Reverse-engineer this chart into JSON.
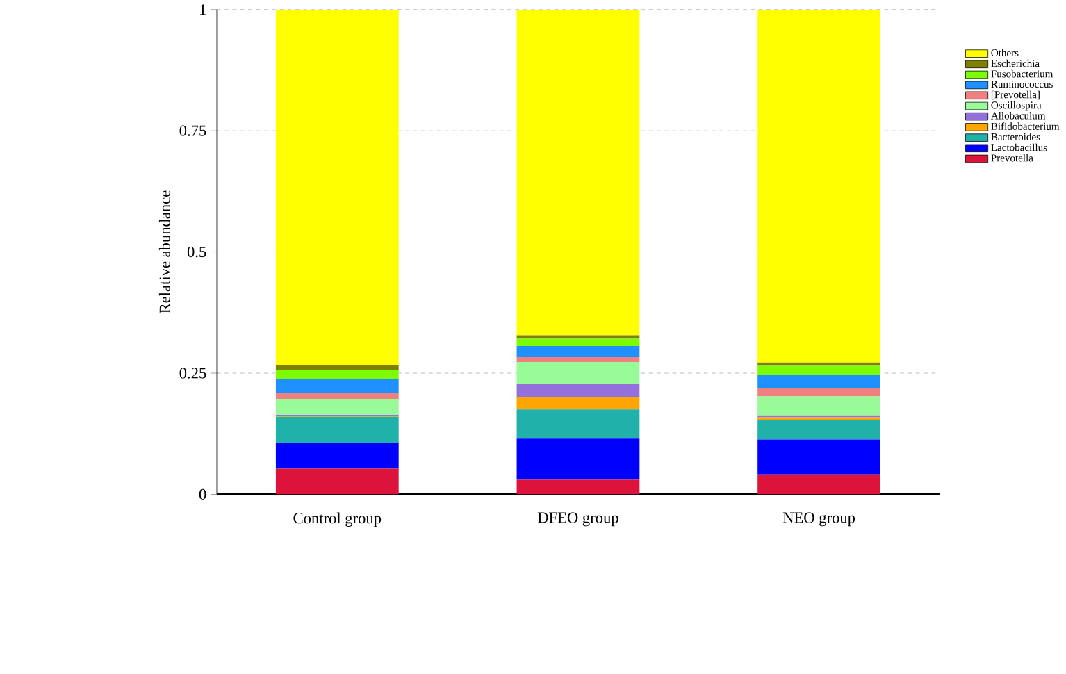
{
  "chart_data": {
    "type": "bar",
    "stacked": true,
    "ylabel": "Relative abundance",
    "categories": [
      "Control group",
      "DFEO group",
      "NEO group"
    ],
    "series": [
      {
        "name": "Prevotella",
        "color": "#dc143c",
        "values": [
          0.053,
          0.03,
          0.041
        ]
      },
      {
        "name": "Lactobacillus",
        "color": "#0000ff",
        "values": [
          0.053,
          0.085,
          0.072
        ]
      },
      {
        "name": "Bacteroides",
        "color": "#20b2aa",
        "values": [
          0.054,
          0.06,
          0.041
        ]
      },
      {
        "name": "Bifidobacterium",
        "color": "#ffa500",
        "values": [
          0.002,
          0.025,
          0.005
        ]
      },
      {
        "name": "Allobaculum",
        "color": "#9370db",
        "values": [
          0.002,
          0.027,
          0.004
        ]
      },
      {
        "name": "Oscillospira",
        "color": "#98fb98",
        "values": [
          0.033,
          0.046,
          0.039
        ]
      },
      {
        "name": "[Prevotella]",
        "color": "#f08080",
        "values": [
          0.013,
          0.01,
          0.018
        ]
      },
      {
        "name": "Ruminococcus",
        "color": "#1e90ff",
        "values": [
          0.028,
          0.023,
          0.026
        ]
      },
      {
        "name": "Fusobacterium",
        "color": "#7cfc00",
        "values": [
          0.018,
          0.015,
          0.019
        ]
      },
      {
        "name": "Escherichia",
        "color": "#808000",
        "values": [
          0.011,
          0.007,
          0.007
        ]
      },
      {
        "name": "Others",
        "color": "#ffff00",
        "values": [
          0.733,
          0.672,
          0.728
        ]
      }
    ],
    "ylim": [
      0,
      1
    ],
    "yticks": [
      0,
      0.25,
      0.5,
      0.75,
      1
    ],
    "grid": "y",
    "legend": "right"
  }
}
